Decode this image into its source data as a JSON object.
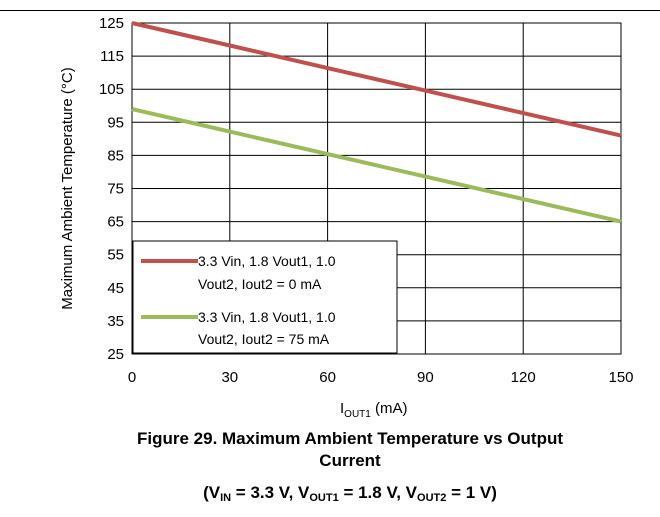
{
  "chart_data": {
    "type": "line",
    "x": [
      0,
      30,
      60,
      90,
      120,
      150
    ],
    "xlim": [
      0,
      150
    ],
    "ylim": [
      25,
      125
    ],
    "x_ticks": [
      "0",
      "30",
      "60",
      "90",
      "120",
      "150"
    ],
    "y_ticks": [
      "25",
      "35",
      "45",
      "55",
      "65",
      "75",
      "85",
      "95",
      "105",
      "115",
      "125"
    ],
    "ylabel": "Maximum Ambient Temperature (°C)",
    "xlabel_main": "I",
    "xlabel_sub": "OUT1",
    "xlabel_unit": " (mA)",
    "grid": true,
    "legend_position": "bottom-left",
    "series": [
      {
        "name_line1": "3.3 Vin, 1.8 Vout1,  1.0",
        "name_line2": "Vout2, Iout2 = 0 mA",
        "color": "#C0504D",
        "x": [
          0,
          30,
          60,
          90,
          120,
          150
        ],
        "values": [
          125,
          118.2,
          111.4,
          104.6,
          97.8,
          91
        ]
      },
      {
        "name_line1": "3.3 Vin, 1.8 Vout1,  1.0",
        "name_line2": "Vout2, Iout2 = 75 mA",
        "color": "#9BBB59",
        "x": [
          0,
          30,
          60,
          90,
          120,
          150
        ],
        "values": [
          99,
          92.2,
          85.4,
          78.6,
          71.8,
          65
        ]
      }
    ]
  },
  "caption": {
    "line1": "Figure 29. Maximum Ambient Temperature vs Output",
    "line2": "Current",
    "l3_open": "(V",
    "l3_sub1": "IN",
    "l3_mid1": " = 3.3 V, V",
    "l3_sub2": "OUT1",
    "l3_mid2": " = 1.8 V, V",
    "l3_sub3": "OUT2",
    "l3_end": " = 1 V)"
  }
}
